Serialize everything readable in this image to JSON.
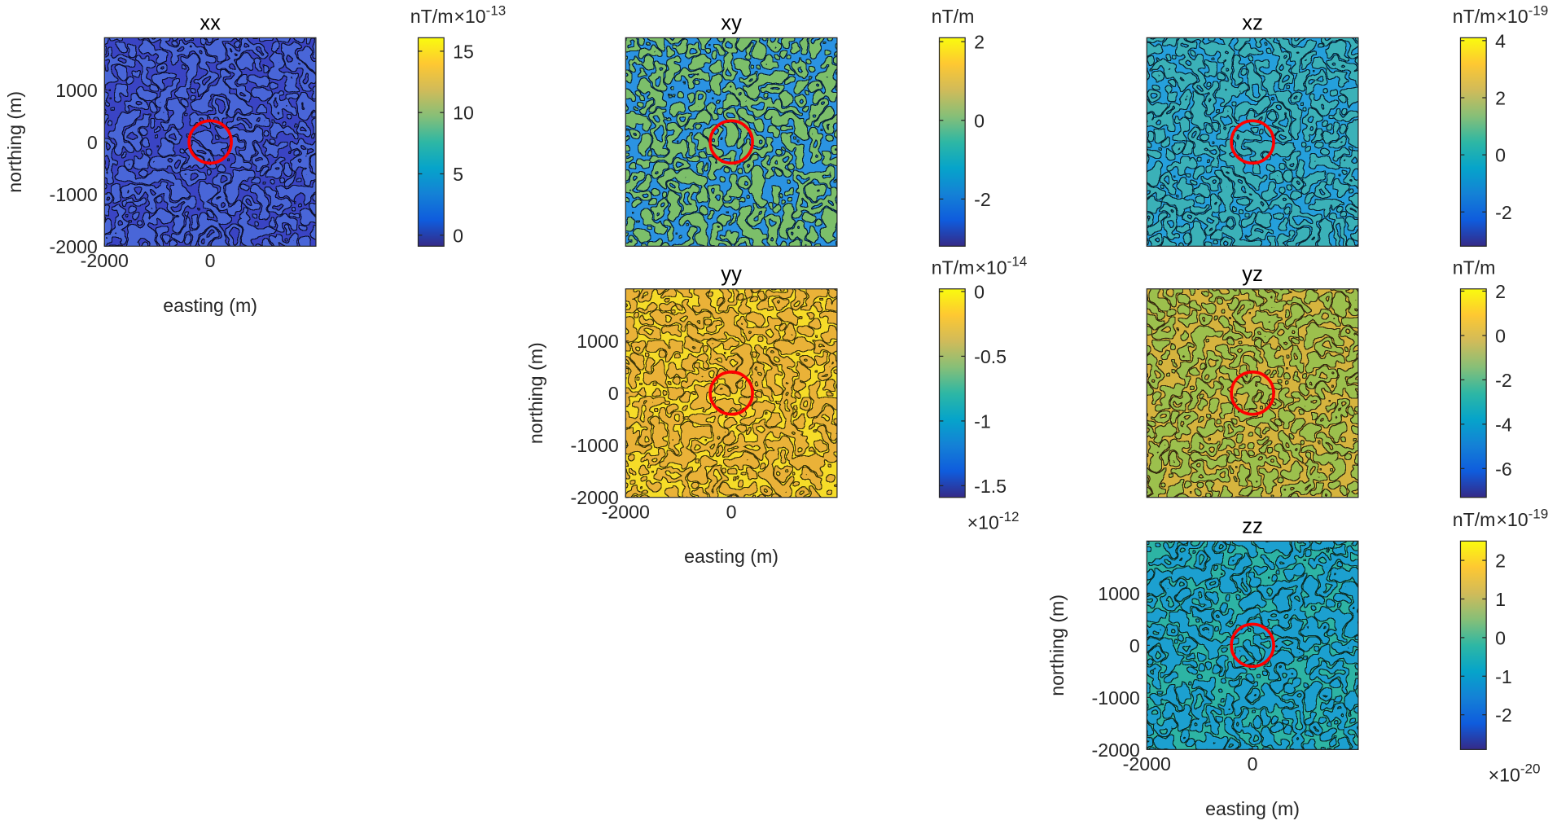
{
  "chart_data": [
    {
      "type": "contour",
      "title": "xx",
      "xlabel": "easting (m)",
      "ylabel": "northing (m)",
      "xlim": [
        -2000,
        2000
      ],
      "ylim": [
        -2000,
        2000
      ],
      "xticks": [
        -2000,
        0
      ],
      "yticks": [
        -2000,
        -1000,
        0,
        1000
      ],
      "field_color": "#3a44c4",
      "pattern_color": "#4866d8",
      "circle": {
        "x": 0,
        "y": 0,
        "r": 400,
        "color": "#ff0000"
      },
      "colorbar": {
        "label": "nT/m",
        "clim": [
          -0.9,
          16.1
        ],
        "ticks": [
          0,
          5,
          10,
          15
        ],
        "exponents": [
          {
            "base": "×10",
            "power": "-13",
            "position": "top"
          }
        ]
      }
    },
    {
      "type": "contour",
      "title": "xy",
      "xlim": [
        -2000,
        2000
      ],
      "ylim": [
        -2000,
        2000
      ],
      "field_color": "#2b93e2",
      "pattern_color": "#7cbf6a",
      "circle": {
        "x": 0,
        "y": 0,
        "r": 400,
        "color": "#ff0000"
      },
      "colorbar": {
        "label": "nT/m",
        "clim": [
          -3.2,
          2.1
        ],
        "ticks": [
          -2,
          0,
          2
        ],
        "exponents": []
      }
    },
    {
      "type": "contour",
      "title": "xz",
      "xlim": [
        -2000,
        2000
      ],
      "ylim": [
        -2000,
        2000
      ],
      "field_color": "#25a0dc",
      "pattern_color": "#3ab1b8",
      "circle": {
        "x": 0,
        "y": 0,
        "r": 400,
        "color": "#ff0000"
      },
      "colorbar": {
        "label": "nT/m",
        "clim": [
          -3.2,
          4.1
        ],
        "ticks": [
          -2,
          0,
          2,
          4
        ],
        "exponents": [
          {
            "base": "×10",
            "power": "-19",
            "position": "top"
          }
        ]
      }
    },
    {
      "type": "contour",
      "title": "yy",
      "xlabel": "easting (m)",
      "ylabel": "northing (m)",
      "xlim": [
        -2000,
        2000
      ],
      "ylim": [
        -2000,
        2000
      ],
      "xticks": [
        -2000,
        0
      ],
      "yticks": [
        -2000,
        -1000,
        0,
        1000
      ],
      "field_color": "#f6dc28",
      "pattern_color": "#eab238",
      "circle": {
        "x": 0,
        "y": 0,
        "r": 400,
        "color": "#ff0000"
      },
      "colorbar": {
        "label": "nT/m",
        "clim": [
          -1.59,
          0.02
        ],
        "ticks": [
          0,
          -0.5,
          -1,
          -1.5
        ],
        "exponents": [
          {
            "base": "×10",
            "power": "-14",
            "position": "top"
          },
          {
            "base": "×10",
            "power": "-12",
            "position": "bottom"
          }
        ]
      }
    },
    {
      "type": "contour",
      "title": "yz",
      "xlim": [
        -2000,
        2000
      ],
      "ylim": [
        -2000,
        2000
      ],
      "field_color": "#d6b43e",
      "pattern_color": "#9cc04e",
      "circle": {
        "x": 0,
        "y": 0,
        "r": 400,
        "color": "#ff0000"
      },
      "colorbar": {
        "label": "nT/m",
        "clim": [
          -7.3,
          2.1
        ],
        "ticks": [
          2,
          0,
          -2,
          -4,
          -6
        ],
        "exponents": []
      }
    },
    {
      "type": "contour",
      "title": "zz",
      "xlabel": "easting (m)",
      "ylabel": "northing (m)",
      "xlim": [
        -2000,
        2000
      ],
      "ylim": [
        -2000,
        2000
      ],
      "xticks": [
        -2000,
        0
      ],
      "yticks": [
        -2000,
        -1000,
        0,
        1000
      ],
      "field_color": "#2db4a4",
      "pattern_color": "#1ea0d0",
      "circle": {
        "x": 0,
        "y": 0,
        "r": 400,
        "color": "#ff0000"
      },
      "colorbar": {
        "label": "nT/m",
        "clim": [
          -2.9,
          2.5
        ],
        "ticks": [
          2,
          1,
          0,
          -1,
          -2
        ],
        "exponents": [
          {
            "base": "×10",
            "power": "-19",
            "position": "top"
          },
          {
            "base": "×10",
            "power": "-20",
            "position": "bottom"
          }
        ]
      }
    }
  ],
  "colormap": [
    "#352a87",
    "#0f5cdd",
    "#1481d6",
    "#06a4ca",
    "#2eb7a4",
    "#87bf77",
    "#d1bb59",
    "#fec832",
    "#f9fb0e"
  ]
}
